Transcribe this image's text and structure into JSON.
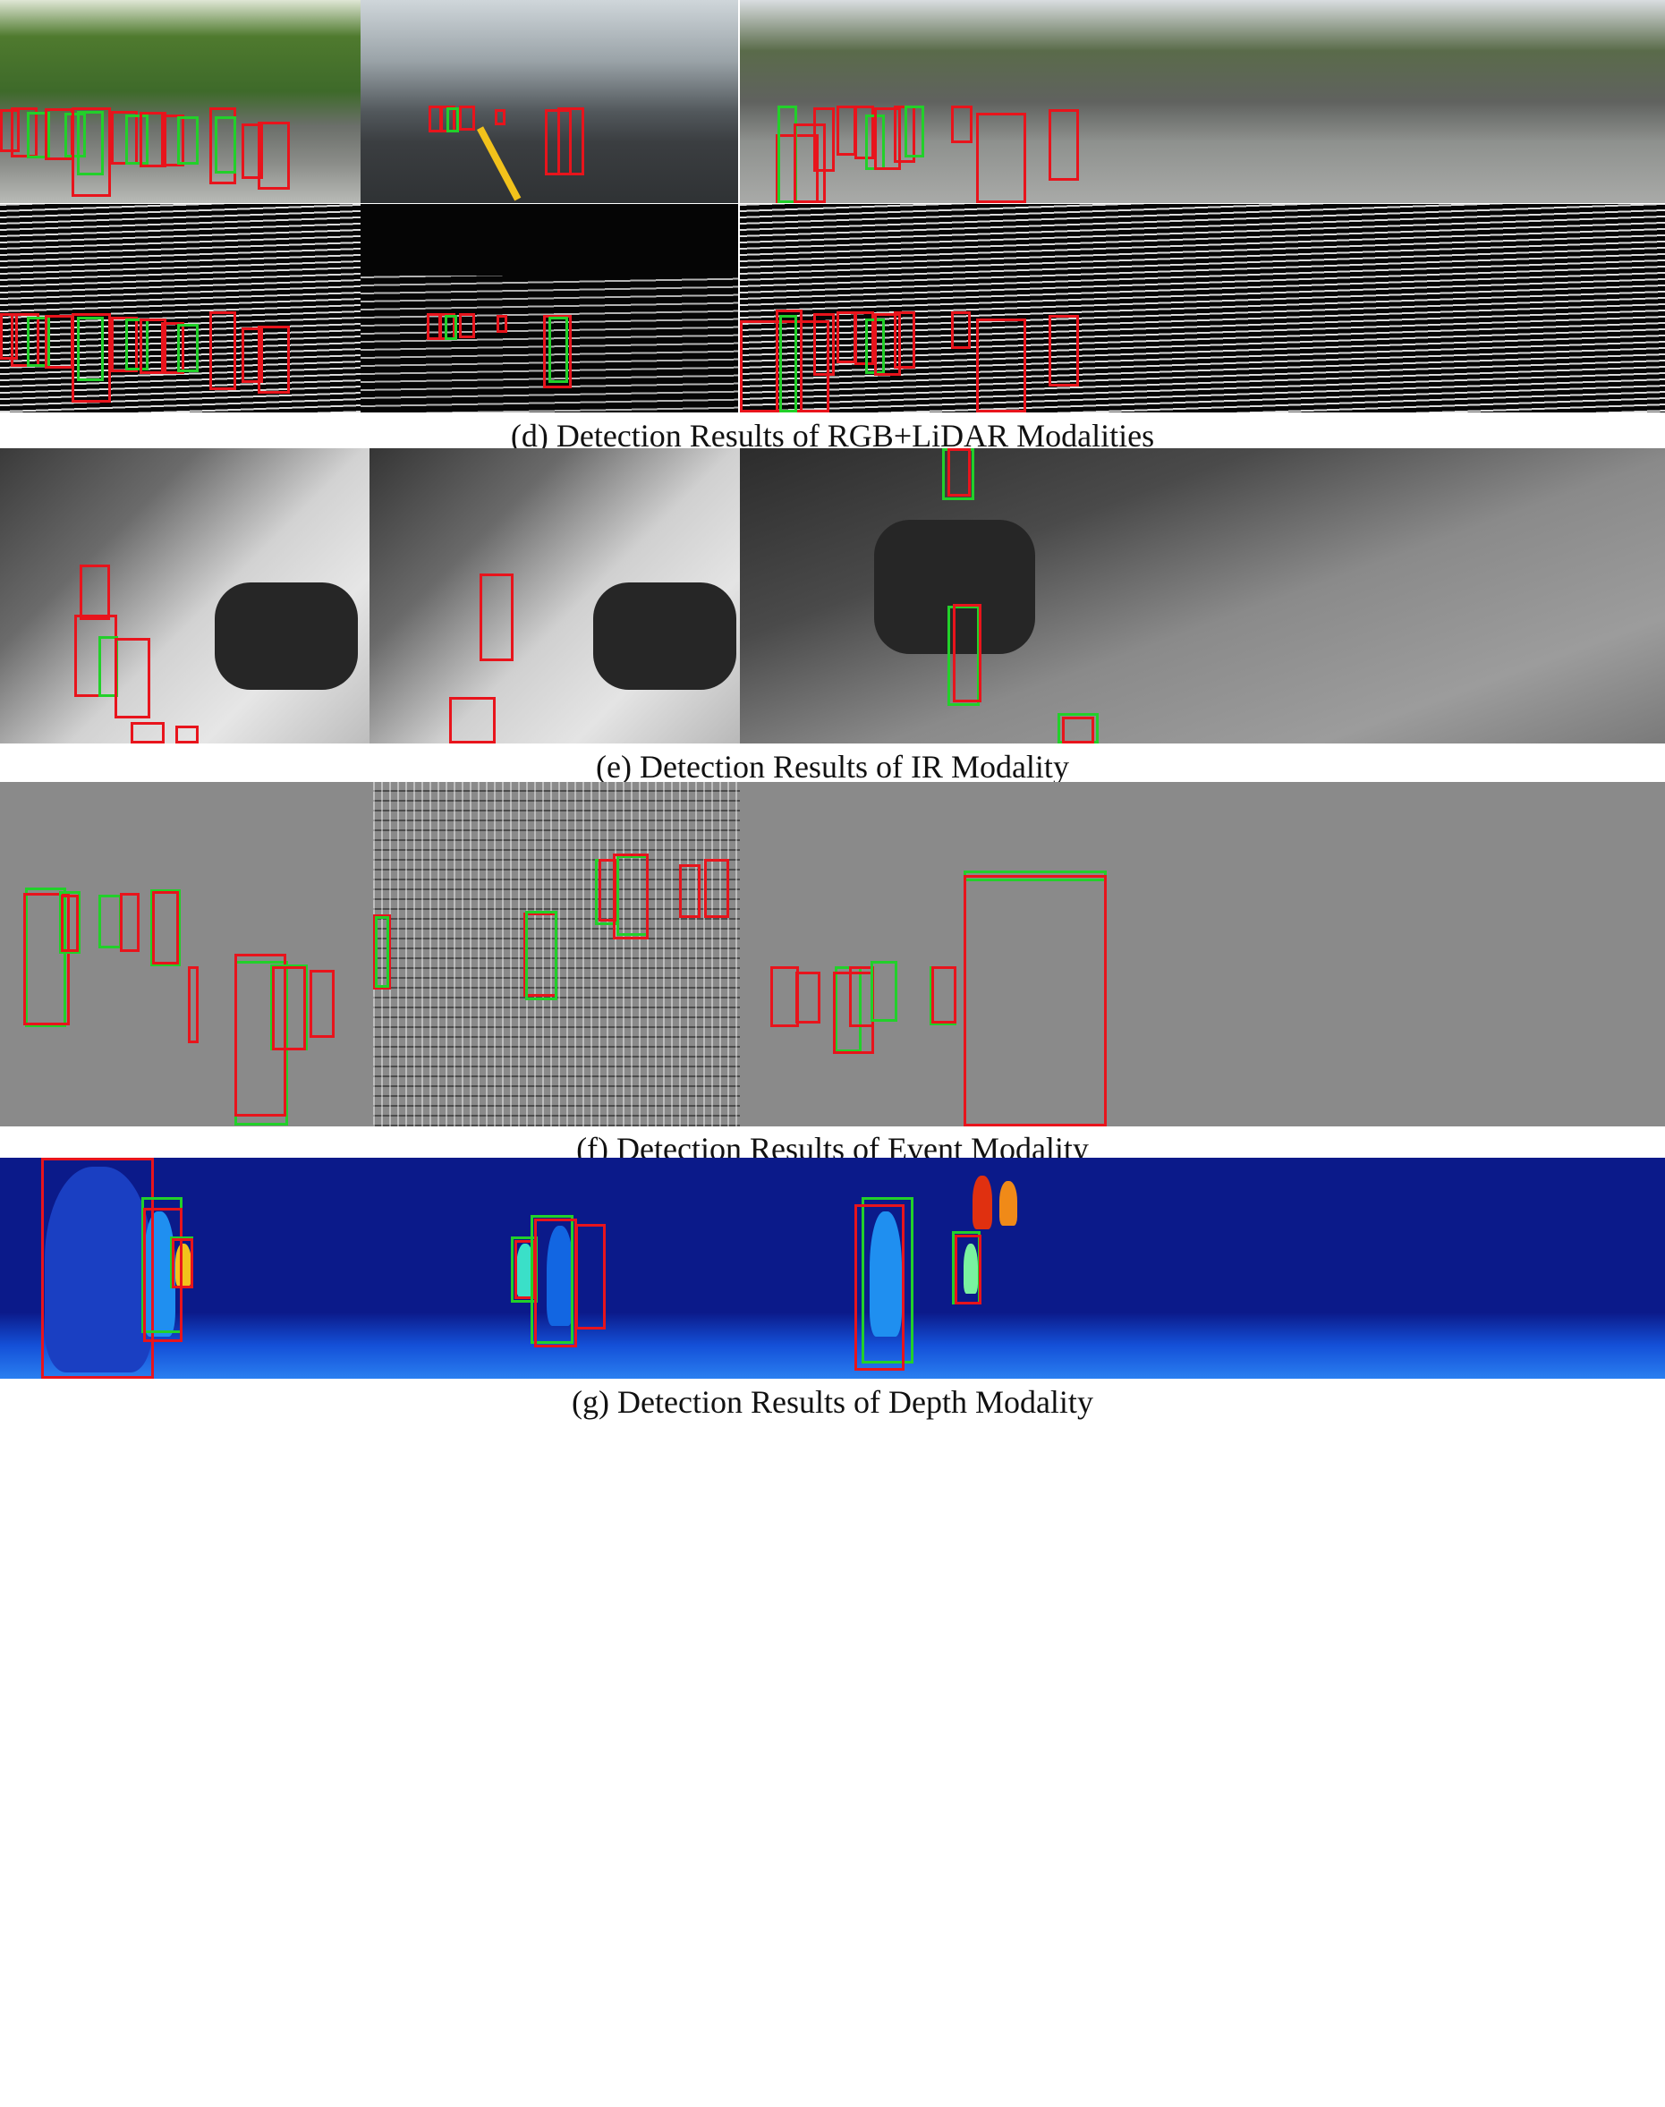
{
  "figure": {
    "captions": {
      "rgb_lidar": "(d) Detection Results of RGB+LiDAR Modalities",
      "ir": "(e) Detection Results of IR Modality",
      "event": "(f) Detection Results of Event Modality",
      "depth": "(g) Detection Results of Depth Modality"
    },
    "colors": {
      "box_red": "#e8141c",
      "box_green": "#22d02a",
      "depth_background": "#0b1a8a"
    }
  }
}
